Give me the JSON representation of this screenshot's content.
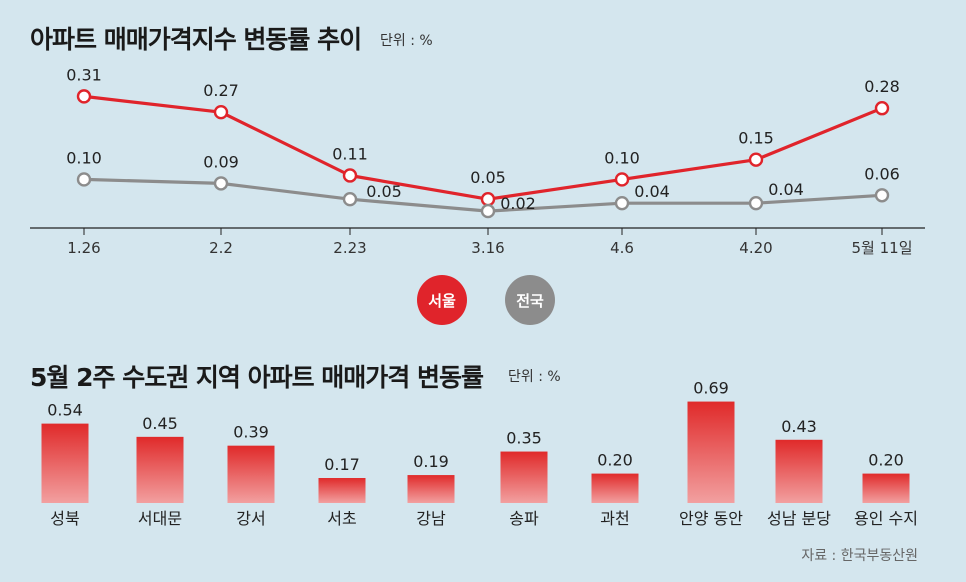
{
  "header1": {
    "title": "아파트 매매가격지수 변동률 추이",
    "unit": "단위 : %"
  },
  "header2": {
    "title": "5월 2주 수도권 지역 아파트 매매가격 변동률",
    "unit": "단위 : %"
  },
  "source": "자료 : 한국부동산원",
  "colors": {
    "seoul": "#e0242b",
    "national": "#8c8c8c",
    "bar_top": "#e02a2a",
    "bar_bottom": "#f2a0a0"
  },
  "chart_data": [
    {
      "type": "line",
      "categories": [
        "1.26",
        "2.2",
        "2.23",
        "3.16",
        "4.6",
        "4.20",
        "5월 11일"
      ],
      "series": [
        {
          "name": "서울",
          "values": [
            0.31,
            0.27,
            0.11,
            0.05,
            0.1,
            0.15,
            0.28
          ]
        },
        {
          "name": "전국",
          "values": [
            0.1,
            0.09,
            0.05,
            0.02,
            0.04,
            0.04,
            0.06
          ]
        }
      ],
      "data_labels": {
        "서울": [
          "0.31",
          "0.27",
          "0.11",
          "0.05",
          "0.10",
          "0.15",
          "0.28"
        ],
        "전국": [
          "0.10",
          "0.09",
          "0.05",
          "0.02",
          "0.04",
          "0.04",
          "0.06"
        ]
      }
    },
    {
      "type": "bar",
      "categories": [
        "성북",
        "서대문",
        "강서",
        "서초",
        "강남",
        "송파",
        "과천",
        "안양 동안",
        "성남 분당",
        "용인 수지"
      ],
      "values": [
        0.54,
        0.45,
        0.39,
        0.17,
        0.19,
        0.35,
        0.2,
        0.69,
        0.43,
        0.2
      ],
      "data_labels": [
        "0.54",
        "0.45",
        "0.39",
        "0.17",
        "0.19",
        "0.35",
        "0.20",
        "0.69",
        "0.43",
        "0.20"
      ]
    }
  ]
}
